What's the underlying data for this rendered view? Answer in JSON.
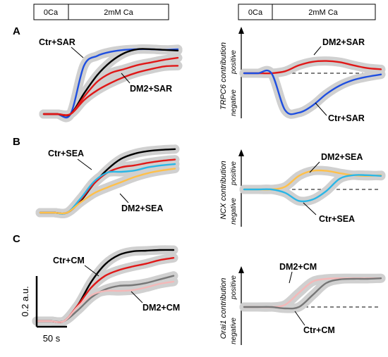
{
  "header_bars": [
    {
      "segments": [
        "0Ca",
        "2mM Ca"
      ]
    },
    {
      "segments": [
        "0Ca",
        "2mM Ca"
      ]
    }
  ],
  "scale_bar": {
    "y_label": "0.2 a.u.",
    "x_label": "50 s"
  },
  "colors": {
    "Ctr+SAR": "#1f4fe0",
    "DM2+SAR": "#e01818",
    "Ctr": "#000000",
    "Ctr+SEA": "#29b6e6",
    "DM2+SEA": "#ffc04a",
    "Ctr+CM": "#777777",
    "DM2+CM": "#f4b8b8",
    "band": "#d0d0d0"
  },
  "chart_data": [
    {
      "type": "line",
      "panel": "A",
      "side": "left",
      "xlabel": "",
      "ylabel": "",
      "annotations": [
        "Ctr+SAR",
        "DM2+SAR"
      ],
      "x": [
        0,
        2,
        4,
        6,
        8,
        10,
        12,
        14,
        16,
        18,
        20
      ],
      "series": [
        {
          "name": "Ctr+SAR",
          "color_key": "Ctr+SAR",
          "values": [
            0.0,
            0.0,
            0.0,
            0.73,
            0.88,
            0.94,
            0.97,
            0.98,
            0.98,
            0.97,
            0.98
          ]
        },
        {
          "name": "",
          "color_key": "Ctr",
          "values": [
            0.0,
            0.0,
            0.0,
            0.31,
            0.59,
            0.79,
            0.92,
            0.98,
            0.98,
            0.97,
            0.96
          ]
        },
        {
          "name": "DM2+SAR",
          "color_key": "DM2+SAR",
          "values": [
            0.0,
            0.0,
            0.0,
            0.26,
            0.49,
            0.62,
            0.68,
            0.74,
            0.78,
            0.82,
            0.85
          ]
        },
        {
          "name": "DM2+SAR",
          "color_key": "DM2+SAR",
          "values": [
            0.0,
            0.0,
            0.0,
            0.21,
            0.36,
            0.47,
            0.56,
            0.63,
            0.68,
            0.72,
            0.73
          ]
        }
      ]
    },
    {
      "type": "line",
      "panel": "A",
      "side": "right",
      "ylabel": "TRPC6 contribution",
      "y_top": "positive",
      "y_bottom": "negative",
      "annotations": [
        "DM2+SAR",
        "Ctr+SAR"
      ],
      "x": [
        0,
        2,
        4,
        6,
        8,
        10,
        12,
        14,
        16,
        18,
        20
      ],
      "series": [
        {
          "name": "DM2+SAR",
          "color_key": "DM2+SAR",
          "values": [
            0.0,
            0.0,
            0.0,
            0.05,
            0.2,
            0.29,
            0.31,
            0.28,
            0.2,
            0.13,
            0.1
          ]
        },
        {
          "name": "Ctr+SAR",
          "color_key": "Ctr+SAR",
          "values": [
            0.0,
            0.0,
            0.0,
            -0.94,
            -1.0,
            -0.82,
            -0.53,
            -0.31,
            -0.17,
            -0.09,
            -0.03
          ]
        }
      ]
    },
    {
      "type": "line",
      "panel": "B",
      "side": "left",
      "annotations": [
        "Ctr+SEA",
        "DM2+SEA"
      ],
      "x": [
        0,
        2,
        4,
        6,
        8,
        10,
        12,
        14,
        16,
        18,
        20
      ],
      "series": [
        {
          "name": "",
          "color_key": "Ctr",
          "values": [
            0.0,
            0.0,
            0.0,
            0.18,
            0.45,
            0.67,
            0.83,
            0.91,
            0.95,
            0.97,
            0.98
          ]
        },
        {
          "name": "",
          "color_key": "DM2+SAR",
          "values": [
            0.0,
            0.0,
            0.0,
            0.2,
            0.45,
            0.62,
            0.7,
            0.73,
            0.77,
            0.8,
            0.82
          ]
        },
        {
          "name": "Ctr+SEA",
          "color_key": "Ctr+SEA",
          "values": [
            0.0,
            0.0,
            0.0,
            0.22,
            0.48,
            0.62,
            0.63,
            0.65,
            0.7,
            0.73,
            0.75
          ]
        },
        {
          "name": "DM2+SEA",
          "color_key": "DM2+SEA",
          "values": [
            0.0,
            0.0,
            0.0,
            0.16,
            0.3,
            0.39,
            0.47,
            0.55,
            0.61,
            0.65,
            0.68
          ]
        }
      ]
    },
    {
      "type": "line",
      "panel": "B",
      "side": "right",
      "ylabel": "NCX contribution",
      "y_top": "positive",
      "y_bottom": "negative",
      "annotations": [
        "DM2+SEA",
        "Ctr+SEA"
      ],
      "x": [
        0,
        2,
        4,
        6,
        8,
        10,
        12,
        14,
        16,
        18,
        20
      ],
      "series": [
        {
          "name": "DM2+SEA",
          "color_key": "DM2+SEA",
          "values": [
            0.0,
            0.0,
            0.0,
            0.08,
            0.4,
            0.55,
            0.55,
            0.48,
            0.42,
            0.4,
            0.42
          ]
        },
        {
          "name": "Ctr+SEA",
          "color_key": "Ctr+SEA",
          "values": [
            0.0,
            0.0,
            0.0,
            -0.1,
            -0.34,
            -0.3,
            -0.05,
            0.32,
            0.42,
            0.42,
            0.4
          ]
        }
      ]
    },
    {
      "type": "line",
      "panel": "C",
      "side": "left",
      "annotations": [
        "Ctr+CM",
        "DM2+CM"
      ],
      "x": [
        0,
        2,
        4,
        6,
        8,
        10,
        12,
        14,
        16,
        18,
        20
      ],
      "series": [
        {
          "name": "",
          "color_key": "Ctr",
          "values": [
            0.0,
            0.0,
            0.0,
            0.22,
            0.55,
            0.79,
            0.92,
            0.97,
            0.98,
            0.99,
            0.99
          ]
        },
        {
          "name": "",
          "color_key": "DM2+SAR",
          "values": [
            0.0,
            0.0,
            0.0,
            0.22,
            0.47,
            0.63,
            0.71,
            0.76,
            0.8,
            0.85,
            0.88
          ]
        },
        {
          "name": "Ctr+CM",
          "color_key": "Ctr+CM",
          "values": [
            0.0,
            0.0,
            0.0,
            0.15,
            0.33,
            0.44,
            0.49,
            0.5,
            0.53,
            0.58,
            0.63
          ]
        },
        {
          "name": "DM2+CM",
          "color_key": "DM2+CM",
          "values": [
            0.0,
            0.0,
            0.0,
            0.2,
            0.36,
            0.42,
            0.42,
            0.43,
            0.47,
            0.52,
            0.55
          ]
        }
      ]
    },
    {
      "type": "line",
      "panel": "C",
      "side": "right",
      "ylabel": "Orai1 contribution",
      "y_top": "positive",
      "y_bottom": "negative",
      "annotations": [
        "DM2+CM",
        "Ctr+CM"
      ],
      "x": [
        0,
        2,
        4,
        6,
        8,
        10,
        12,
        14,
        16,
        18,
        20
      ],
      "series": [
        {
          "name": "DM2+CM",
          "color_key": "DM2+CM",
          "values": [
            0.0,
            0.0,
            0.0,
            0.08,
            0.5,
            0.9,
            1.0,
            1.02,
            1.02,
            1.02,
            1.02
          ]
        },
        {
          "name": "Ctr+CM",
          "color_key": "Ctr+CM",
          "values": [
            0.0,
            0.0,
            0.0,
            -0.05,
            0.0,
            0.42,
            0.85,
            0.98,
            1.0,
            1.0,
            1.02
          ]
        }
      ]
    }
  ]
}
